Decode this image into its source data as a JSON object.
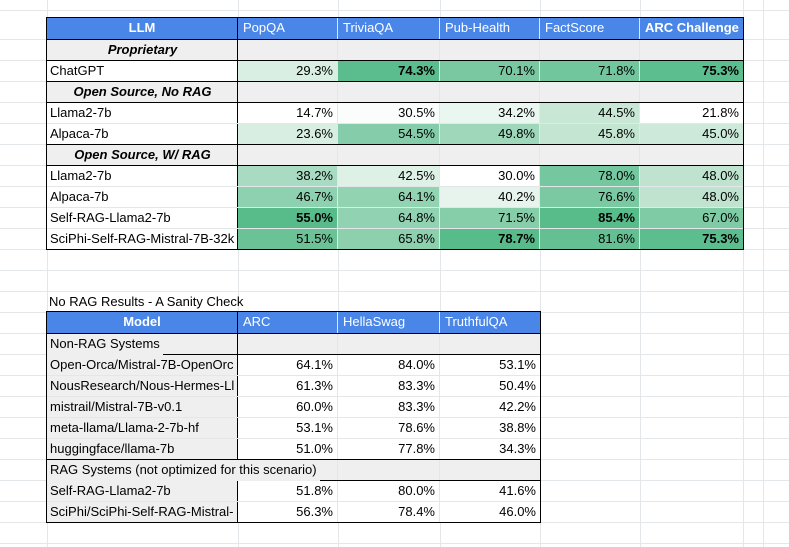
{
  "colors": {
    "header_blue": "#4a86e8",
    "header_text": "#ffffff",
    "section_gray": "#efefef",
    "model_cell_gray": "#efefef",
    "grid_line": "#e4e7ea",
    "table_border": "#000000",
    "scale_max_green": "#57bb8a",
    "background": "#ffffff"
  },
  "benchmark_table": {
    "header": [
      {
        "label": "LLM",
        "bold": true,
        "align": "center"
      },
      {
        "label": "PopQA",
        "bold": false,
        "align": "left"
      },
      {
        "label": "TriviaQA",
        "bold": false,
        "align": "left"
      },
      {
        "label": "Pub-Health",
        "bold": false,
        "align": "left"
      },
      {
        "label": "FactScore",
        "bold": false,
        "align": "left"
      },
      {
        "label": "ARC Challenge",
        "bold": true,
        "align": "left"
      }
    ],
    "rows": [
      {
        "type": "section",
        "label": "Proprietary"
      },
      {
        "type": "data",
        "model": "ChatGPT",
        "cells": [
          {
            "v": "29.3%",
            "bg": "#d9efe4"
          },
          {
            "v": "74.3%",
            "bg": "#5bbd8d",
            "bold": true
          },
          {
            "v": "70.1%",
            "bg": "#79c8a1"
          },
          {
            "v": "71.8%",
            "bg": "#72c69d"
          },
          {
            "v": "75.3%",
            "bg": "#5cbd8e",
            "bold": true
          }
        ]
      },
      {
        "type": "section",
        "label": "Open Source, No RAG"
      },
      {
        "type": "data",
        "model": "Llama2-7b",
        "cells": [
          {
            "v": "14.7%",
            "bg": "#ffffff"
          },
          {
            "v": "30.5%",
            "bg": "#fafdfb"
          },
          {
            "v": "34.2%",
            "bg": "#eaf6f0"
          },
          {
            "v": "44.5%",
            "bg": "#c8e7d5"
          },
          {
            "v": "21.8%",
            "bg": "#ffffff"
          }
        ]
      },
      {
        "type": "data",
        "model": "Alpaca-7b",
        "cells": [
          {
            "v": "23.6%",
            "bg": "#d9eee3"
          },
          {
            "v": "54.5%",
            "bg": "#85cdaa"
          },
          {
            "v": "49.8%",
            "bg": "#9ed7ba"
          },
          {
            "v": "45.8%",
            "bg": "#c5e5d3"
          },
          {
            "v": "45.0%",
            "bg": "#cde9d9"
          }
        ]
      },
      {
        "type": "section",
        "label": "Open Source, W/ RAG"
      },
      {
        "type": "data",
        "model": "Llama2-7b",
        "cells": [
          {
            "v": "38.2%",
            "bg": "#a8dbc1"
          },
          {
            "v": "42.5%",
            "bg": "#def1e7"
          },
          {
            "v": "30.0%",
            "bg": "#ffffff"
          },
          {
            "v": "78.0%",
            "bg": "#74c79e"
          },
          {
            "v": "48.0%",
            "bg": "#bfe3cf"
          }
        ]
      },
      {
        "type": "data",
        "model": "Alpaca-7b",
        "cells": [
          {
            "v": "46.7%",
            "bg": "#8ed1b0"
          },
          {
            "v": "64.1%",
            "bg": "#92d3b2"
          },
          {
            "v": "40.2%",
            "bg": "#e6f4ed"
          },
          {
            "v": "76.6%",
            "bg": "#7ac9a2"
          },
          {
            "v": "48.0%",
            "bg": "#bfe3cf"
          }
        ]
      },
      {
        "type": "data",
        "model": "Self-RAG-Llama2-7b",
        "cells": [
          {
            "v": "55.0%",
            "bg": "#57bb8a",
            "bold": true
          },
          {
            "v": "64.8%",
            "bg": "#90d2b1"
          },
          {
            "v": "71.5%",
            "bg": "#85cea9"
          },
          {
            "v": "85.4%",
            "bg": "#57bb8a",
            "bold": true
          },
          {
            "v": "67.0%",
            "bg": "#7fcba5"
          }
        ]
      },
      {
        "type": "data",
        "model": "SciPhi-Self-RAG-Mistral-7B-32k",
        "cells": [
          {
            "v": "51.5%",
            "bg": "#6bc297"
          },
          {
            "v": "65.8%",
            "bg": "#8cd0ae"
          },
          {
            "v": "78.7%",
            "bg": "#57bb8a",
            "bold": true
          },
          {
            "v": "81.6%",
            "bg": "#64c093"
          },
          {
            "v": "75.3%",
            "bg": "#5cbd8e",
            "bold": true
          }
        ]
      }
    ]
  },
  "sanity_section": {
    "title": "No RAG Results - A Sanity Check",
    "table": {
      "header": [
        {
          "label": "Model",
          "bold": true,
          "align": "center"
        },
        {
          "label": "ARC",
          "bold": false,
          "align": "left"
        },
        {
          "label": "HellaSwag",
          "bold": false,
          "align": "left"
        },
        {
          "label": "TruthfulQA",
          "bold": false,
          "align": "left"
        }
      ],
      "rows": [
        {
          "type": "section",
          "label": "Non-RAG Systems"
        },
        {
          "type": "data",
          "model": "Open-Orca/Mistral-7B-OpenOrc",
          "cells": [
            {
              "v": "64.1%"
            },
            {
              "v": "84.0%"
            },
            {
              "v": "53.1%"
            }
          ]
        },
        {
          "type": "data",
          "model": "NousResearch/Nous-Hermes-Ll",
          "cells": [
            {
              "v": "61.3%"
            },
            {
              "v": "83.3%"
            },
            {
              "v": "50.4%"
            }
          ]
        },
        {
          "type": "data",
          "model": "mistrail/Mistral-7B-v0.1",
          "cells": [
            {
              "v": "60.0%"
            },
            {
              "v": "83.3%"
            },
            {
              "v": "42.2%"
            }
          ]
        },
        {
          "type": "data",
          "model": "meta-llama/Llama-2-7b-hf",
          "cells": [
            {
              "v": "53.1%"
            },
            {
              "v": "78.6%"
            },
            {
              "v": "38.8%"
            }
          ]
        },
        {
          "type": "data",
          "model": "huggingface/llama-7b",
          "cells": [
            {
              "v": "51.0%"
            },
            {
              "v": "77.8%"
            },
            {
              "v": "34.3%"
            }
          ]
        },
        {
          "type": "section",
          "label": "RAG Systems (not optimized for this scenario)"
        },
        {
          "type": "data",
          "model": "Self-RAG-Llama2-7b",
          "cells": [
            {
              "v": "51.8%"
            },
            {
              "v": "80.0%"
            },
            {
              "v": "41.6%"
            }
          ]
        },
        {
          "type": "data",
          "model": "SciPhi/SciPhi-Self-RAG-Mistral-",
          "cells": [
            {
              "v": "56.3%"
            },
            {
              "v": "78.4%"
            },
            {
              "v": "46.0%"
            }
          ]
        }
      ]
    }
  }
}
